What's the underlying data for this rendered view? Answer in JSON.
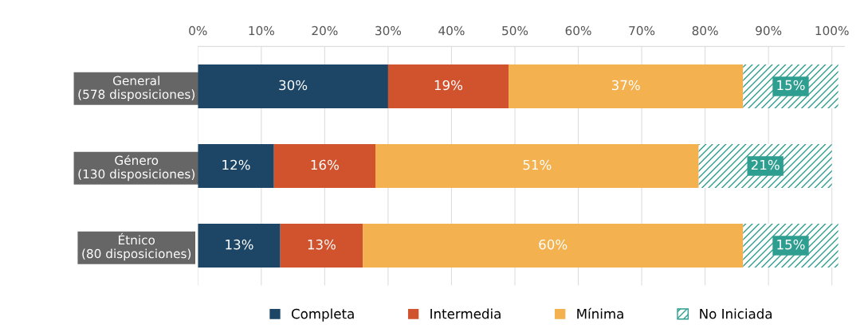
{
  "chart_data": {
    "type": "bar",
    "orientation": "horizontal",
    "stacked": true,
    "categories": [
      "General\n(578 disposiciones)",
      "Género\n(130 disposiciones)",
      "Étnico\n(80 disposiciones)"
    ],
    "series": [
      {
        "name": "Completa",
        "color": "#1c4566",
        "values": [
          30,
          12,
          13
        ]
      },
      {
        "name": "Intermedia",
        "color": "#d1532e",
        "values": [
          19,
          16,
          13
        ]
      },
      {
        "name": "Mínima",
        "color": "#f3b14f",
        "values": [
          37,
          51,
          60
        ]
      },
      {
        "name": "No Iniciada",
        "color": "#2e9e90",
        "values": [
          15,
          21,
          15
        ]
      }
    ],
    "xlim": [
      0,
      102
    ],
    "xticks": [
      {
        "value": 0,
        "label": "0%"
      },
      {
        "value": 10,
        "label": "10%"
      },
      {
        "value": 20,
        "label": "20%"
      },
      {
        "value": 30,
        "label": "30%"
      },
      {
        "value": 40,
        "label": "40%"
      },
      {
        "value": 50,
        "label": "50%"
      },
      {
        "value": 60,
        "label": "60%"
      },
      {
        "value": 70,
        "label": "70%"
      },
      {
        "value": 80,
        "label": "80%"
      },
      {
        "value": 90,
        "label": "90%"
      },
      {
        "value": 100,
        "label": "100%"
      }
    ],
    "value_labels": [
      [
        "30%",
        "12%",
        "13%"
      ],
      [
        "19%",
        "16%",
        "13%"
      ],
      [
        "37%",
        "51%",
        "60%"
      ],
      [
        "15%",
        "21%",
        "15%"
      ]
    ],
    "grid": "x",
    "legend": "bottom"
  }
}
